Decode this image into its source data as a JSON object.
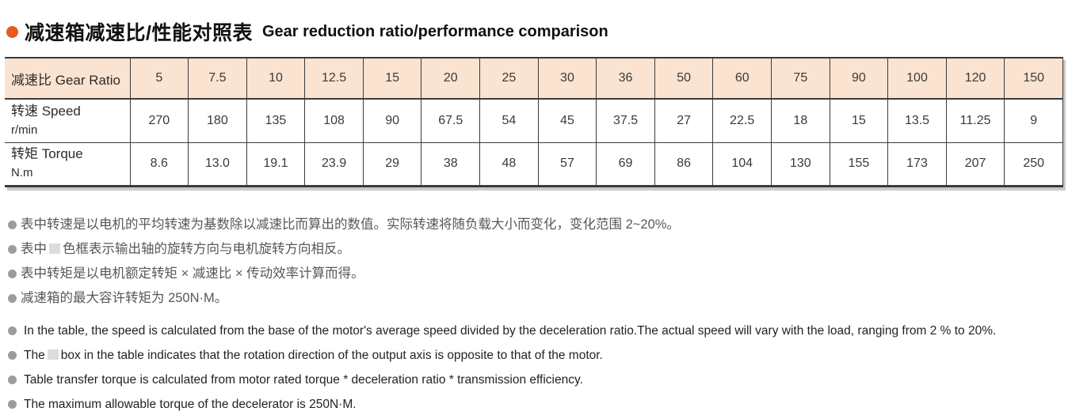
{
  "title": {
    "zh": "减速箱减速比/性能对照表",
    "en": "Gear reduction ratio/performance comparison"
  },
  "colors": {
    "title_bullet": "#e8581f",
    "header_bg": "#fbe3d1",
    "reversed_cell_bg": "#e2e2e2",
    "border": "#3b3b3b",
    "note_bullet": "#9c9c9c"
  },
  "chart_data": {
    "type": "table",
    "title": "减速箱减速比/性能对照表 Gear reduction ratio/performance comparison",
    "header_label": "减速比 Gear Ratio",
    "gear_ratios": [
      "5",
      "7.5",
      "10",
      "12.5",
      "15",
      "20",
      "25",
      "30",
      "36",
      "50",
      "60",
      "75",
      "90",
      "100",
      "120",
      "150"
    ],
    "rows": [
      {
        "label": "转速 Speed",
        "unit": "r/min",
        "values": [
          "270",
          "180",
          "135",
          "108",
          "90",
          "67.5",
          "54",
          "45",
          "37.5",
          "27",
          "22.5",
          "18",
          "15",
          "13.5",
          "11.25",
          "9"
        ]
      },
      {
        "label": "转矩 Torque",
        "unit": "N.m",
        "values": [
          "8.6",
          "13.0",
          "19.1",
          "23.9",
          "29",
          "38",
          "48",
          "57",
          "69",
          "86",
          "104",
          "130",
          "155",
          "173",
          "207",
          "250"
        ]
      }
    ],
    "reversed_columns": [
      0,
      1,
      9,
      10,
      11,
      12,
      13,
      14,
      15
    ]
  },
  "notes": {
    "zh1": "表中转速是以电机的平均转速为基数除以减速比而算出的数值。实际转速将随负载大小而变化，变化范围 2~20%。",
    "zh2_prefix": "表中",
    "zh2_suffix": "色框表示输出轴的旋转方向与电机旋转方向相反。",
    "zh3": "表中转矩是以电机额定转矩 × 减速比 × 传动效率计算而得。",
    "zh4": "减速箱的最大容许转矩为 250N·M。",
    "en1": "In the table, the speed is calculated from the base of the motor's average speed divided by the deceleration ratio.The actual speed will vary with the load, ranging from 2 % to 20%.",
    "en2_prefix": "The",
    "en2_suffix": "box in the table indicates that the rotation direction of the output axis is opposite to that of the motor.",
    "en3": "Table transfer torque is calculated from motor rated torque * deceleration ratio * transmission efficiency.",
    "en4": "The maximum allowable torque of the decelerator is 250N·M."
  }
}
